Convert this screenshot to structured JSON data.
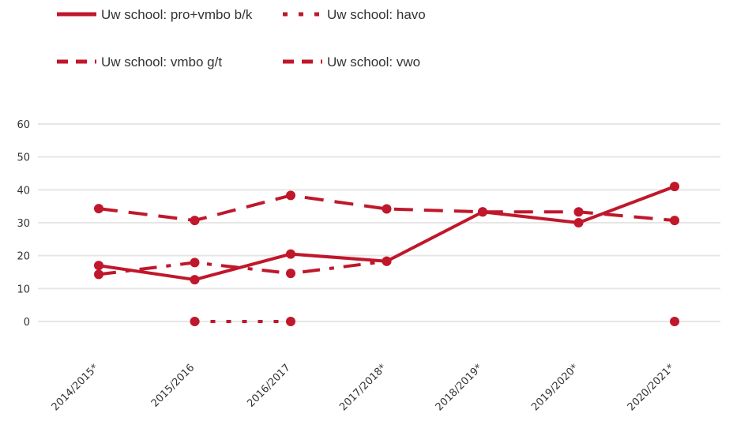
{
  "chart_data": {
    "type": "line",
    "x": [
      "2014/2015*",
      "2015/2016",
      "2016/2017",
      "2017/2018*",
      "2018/2019*",
      "2019/2020*",
      "2020/2021*"
    ],
    "ylim": [
      0,
      60
    ],
    "yticks": [
      "0",
      "10",
      "20",
      "30",
      "40",
      "50",
      "60"
    ],
    "grid": true,
    "legend_position": "top-left",
    "color": "#c0172b",
    "series": [
      {
        "name": "Uw school: pro+vmbo b/k",
        "style": "solid",
        "values": [
          17,
          12.7,
          20.5,
          18.3,
          33.3,
          30,
          41
        ]
      },
      {
        "name": "Uw school: havo",
        "style": "dotted",
        "values": [
          null,
          0,
          0,
          null,
          null,
          null,
          0
        ]
      },
      {
        "name": "Uw school: vmbo g/t",
        "style": "dashed",
        "values": [
          34.3,
          30.7,
          38.3,
          34.2,
          33.3,
          33.3,
          30.7
        ]
      },
      {
        "name": "Uw school: vwo",
        "style": "dashdot",
        "values": [
          14.3,
          17.9,
          14.6,
          18.3,
          null,
          null,
          null
        ]
      }
    ]
  }
}
